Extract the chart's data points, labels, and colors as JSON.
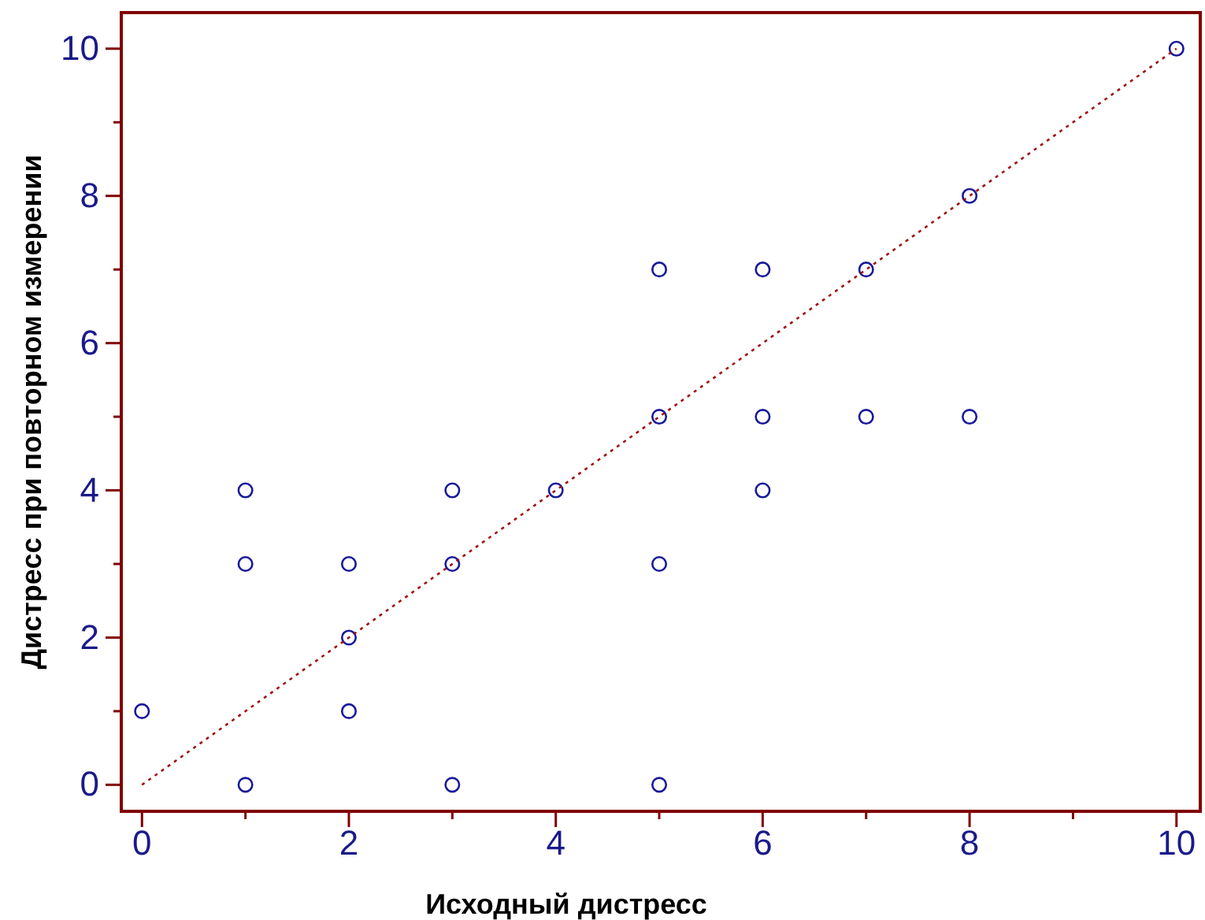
{
  "chart_data": {
    "type": "scatter",
    "xlabel": "Исходный дистресс",
    "ylabel": "Дистресс при повторном измерении",
    "xlim": [
      -0.2,
      10.23
    ],
    "ylim": [
      -0.36,
      10.49
    ],
    "xticks": [
      0,
      {
        "value": 1,
        "label": null
      },
      2,
      {
        "value": 3,
        "label": null
      },
      4,
      {
        "value": 5,
        "label": null
      },
      6,
      {
        "value": 7,
        "label": null
      },
      8,
      {
        "value": 9,
        "label": null
      },
      10
    ],
    "yticks": [
      0,
      {
        "value": 1,
        "label": null
      },
      2,
      {
        "value": 3,
        "label": null
      },
      4,
      {
        "value": 5,
        "label": null
      },
      6,
      {
        "value": 7,
        "label": null
      },
      8,
      {
        "value": 9,
        "label": null
      },
      10
    ],
    "grid": false,
    "marker": "circle",
    "series": [
      {
        "color": "#1a1a9a",
        "x": [
          0,
          1,
          1,
          1,
          2,
          2,
          2,
          3,
          3,
          3,
          4,
          5,
          5,
          5,
          5,
          6,
          6,
          6,
          7,
          7,
          8,
          8,
          10
        ],
        "values": [
          1,
          0,
          3,
          4,
          1,
          2,
          3,
          0,
          3,
          4,
          4,
          0,
          3,
          5,
          7,
          4,
          5,
          7,
          5,
          7,
          5,
          8,
          10
        ]
      },
      {
        "type": "line",
        "color": "#a01010",
        "line_style": "dotted",
        "marker": "none",
        "x": [
          0,
          10
        ],
        "values": [
          0,
          10
        ]
      }
    ]
  }
}
